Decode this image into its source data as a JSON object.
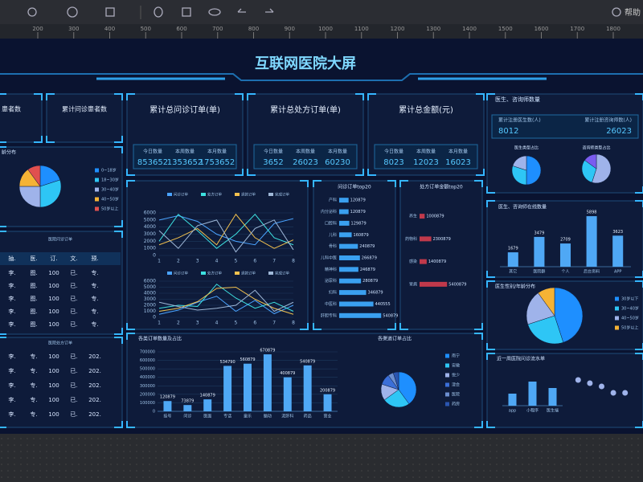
{
  "toolbar": {
    "help": "帮助",
    "ruler": [
      200,
      300,
      400,
      500,
      600,
      700,
      800,
      900,
      1000,
      1100,
      1200,
      1300,
      1400,
      1500,
      1600,
      1700,
      1800
    ]
  },
  "title": "互联网医院大屏",
  "patient_cards": [
    "患者数",
    "累计问诊患者数"
  ],
  "stat_cards": [
    {
      "title": "累计总问诊订单(单)",
      "items": [
        {
          "label": "今日数量",
          "value": 853652
        },
        {
          "label": "本周数量",
          "value": 1353652
        },
        {
          "label": "本月数量",
          "value": 1753652
        }
      ]
    },
    {
      "title": "累计总处方订单(单)",
      "items": [
        {
          "label": "今日数量",
          "value": 3652
        },
        {
          "label": "本周数量",
          "value": 26023
        },
        {
          "label": "本月数量",
          "value": 60230
        }
      ]
    },
    {
      "title": "累计总金额(元)",
      "items": [
        {
          "label": "今日数量",
          "value": 8023
        },
        {
          "label": "本周数量",
          "value": 12023
        },
        {
          "label": "本月数量",
          "value": 16023
        }
      ]
    }
  ],
  "doctor_card": {
    "title": "医生、咨询师数量",
    "items": [
      {
        "label": "累计注册医生数(人)",
        "value": 8012
      },
      {
        "label": "累计注册咨询师数(人)",
        "value": 26023
      }
    ]
  },
  "tables": [
    {
      "title": "医院问诊订单",
      "header": [
        "抽.",
        "医.",
        "订.",
        "文.",
        "预."
      ],
      "rows": [
        [
          "李.",
          "图.",
          "100",
          "已.",
          "专."
        ],
        [
          "李.",
          "图.",
          "100",
          "已.",
          "专."
        ],
        [
          "李.",
          "图.",
          "100",
          "已.",
          "专."
        ],
        [
          "李.",
          "图.",
          "100",
          "已.",
          "专."
        ],
        [
          "李.",
          "图.",
          "100",
          "已.",
          "专."
        ]
      ]
    },
    {
      "title": "医院处方订单",
      "rows": [
        [
          "李.",
          "专.",
          "100",
          "已.",
          "202."
        ],
        [
          "李.",
          "专.",
          "100",
          "已.",
          "202."
        ],
        [
          "李.",
          "专.",
          "100",
          "已.",
          "202."
        ],
        [
          "李.",
          "专.",
          "100",
          "已.",
          "202."
        ],
        [
          "李.",
          "专.",
          "100",
          "已.",
          "202."
        ]
      ]
    }
  ],
  "charts": {
    "age_pie": {
      "type": "pie",
      "title": "龄分布",
      "categories": [
        "0~18岁",
        "18~30岁",
        "30~40岁",
        "40~50岁",
        "50岁以上"
      ],
      "values": [
        20,
        30,
        25,
        15,
        10
      ],
      "colors": [
        "#1e8fff",
        "#2ec6f5",
        "#9fb3ea",
        "#f5b335",
        "#e0504f"
      ]
    },
    "orders_line": {
      "type": "line",
      "x": [
        1,
        2,
        3,
        4,
        5,
        6,
        7,
        8
      ],
      "ylim": [
        0,
        6000
      ],
      "yticks": [
        0,
        1000,
        2000,
        3000,
        4000,
        5000,
        6000
      ],
      "series": [
        {
          "name": "问诊订单",
          "color": "#4aa3ff",
          "values": [
            5000,
            5600,
            4800,
            3000,
            2000,
            1500,
            4500,
            5200
          ]
        },
        {
          "name": "处方订单",
          "color": "#3de0e0",
          "values": [
            2000,
            5800,
            3500,
            1000,
            3000,
            5800,
            2500,
            1500
          ]
        },
        {
          "name": "退款订单",
          "color": "#f2c14e",
          "values": [
            1500,
            2500,
            3800,
            1500,
            5800,
            2500,
            1000,
            2200
          ]
        },
        {
          "name": "完成订单",
          "color": "#9fb8d8",
          "values": [
            3500,
            1000,
            4200,
            5000,
            500,
            3800,
            5000,
            800
          ]
        }
      ]
    },
    "orders_line2": {
      "type": "line",
      "x": [
        1,
        2,
        3,
        4,
        5,
        6,
        7,
        8
      ],
      "ylim": [
        0,
        6000
      ],
      "yticks": [
        0,
        1000,
        2000,
        3000,
        4000,
        5000,
        6000
      ],
      "series": [
        {
          "name": "问诊订单",
          "color": "#4aa3ff",
          "values": [
            500,
            1200,
            2500,
            3500,
            1000,
            2800,
            600,
            2000
          ]
        },
        {
          "name": "处方订单",
          "color": "#3de0e0",
          "values": [
            1500,
            2000,
            1800,
            5500,
            3200,
            1500,
            2500,
            1000
          ]
        },
        {
          "name": "退款订单",
          "color": "#f2c14e",
          "values": [
            1000,
            1500,
            2600,
            4800,
            5000,
            3000,
            1500,
            500
          ]
        },
        {
          "name": "完成订单",
          "color": "#9fb8d8",
          "values": [
            2500,
            1800,
            1200,
            1500,
            2000,
            4500,
            1000,
            2500
          ]
        }
      ]
    },
    "dept_top20": {
      "type": "hbar",
      "title": "问诊订单top20",
      "color": "#3aa0f0",
      "xlim": [
        0,
        600000
      ],
      "categories": [
        "产科",
        "内分泌科",
        "口腔科",
        "儿科",
        "骨科",
        "儿科中医",
        "精神科",
        "泌尿科",
        "妇科",
        "中医科",
        "肝胆专科"
      ],
      "values": [
        120879,
        120879,
        129879,
        160879,
        240879,
        266879,
        246879,
        280879,
        346879,
        440555,
        540879
      ]
    },
    "rx_top20": {
      "type": "hbar",
      "title": "处方订单金额top20",
      "color": "#c0394b",
      "xlim": [
        0,
        6000000
      ],
      "categories": [
        "养生",
        "药物科",
        "感染",
        "胃病"
      ],
      "values": [
        1000879,
        2300879,
        1400879,
        5400879
      ]
    },
    "orders_bar": {
      "type": "bar",
      "title": "各类订单数量及占比",
      "color": "#4fa8f5",
      "ylim": [
        0,
        700000
      ],
      "yticks": [
        0,
        100000,
        200000,
        300000,
        400000,
        500000,
        600000,
        700000
      ],
      "categories": [
        "挂号",
        "问诊",
        "医面",
        "专话",
        "童乐",
        "脑动",
        "泥肝科",
        "药品",
        "营业"
      ],
      "values": [
        120879,
        73879,
        140879,
        534790,
        560879,
        670879,
        400879,
        540879,
        200879
      ]
    },
    "orders_donut": {
      "type": "pie",
      "title": "各渠道订单占比",
      "categories": [
        "南宁",
        "安徽",
        "悦少",
        "津会",
        "医院",
        "药房"
      ],
      "values": [
        40,
        25,
        15,
        10,
        5,
        5
      ],
      "colors": [
        "#1e8fff",
        "#2ec6f5",
        "#9fb3ea",
        "#3b6fd8",
        "#6c8fd0",
        "#2a55b0"
      ]
    },
    "doctor_pie": {
      "type": "pie",
      "title": "医生类型占比",
      "categories": [
        "全科",
        "专科",
        "中医"
      ],
      "values": [
        50,
        30,
        20
      ],
      "colors": [
        "#1e8fff",
        "#2ec6f5",
        "#9fb3ea"
      ]
    },
    "counselor_pie": {
      "type": "pie",
      "title": "咨询师类型占比",
      "categories": [
        "心理",
        "营养",
        "康复"
      ],
      "values": [
        55,
        30,
        15
      ],
      "colors": [
        "#9fb3ea",
        "#2ec6f5",
        "#7a5cf0"
      ]
    },
    "online_bar": {
      "type": "bar",
      "title": "医生、咨询师在线数量",
      "color": "#4fa8f5",
      "ylim": [
        0,
        6000
      ],
      "categories": [
        "其它",
        "医院群",
        "个人",
        "后台资料",
        "APP"
      ],
      "values": [
        1679,
        3479,
        2709,
        5898,
        3623
      ]
    },
    "gender_pie": {
      "type": "pie",
      "title": "医生性别/年龄分布",
      "categories": [
        "30岁以下",
        "30~40岁",
        "40~50岁",
        "50岁以上"
      ],
      "values": [
        45,
        25,
        20,
        10
      ],
      "colors": [
        "#1e8fff",
        "#2ec6f5",
        "#9fb3ea",
        "#f5b335"
      ]
    },
    "recent_bar": {
      "type": "bar",
      "title": "近一周医院问诊流水单",
      "color": "#4fa8f5",
      "ylim": [
        0,
        4000
      ],
      "categories": [
        "app",
        "小程序",
        "医生端"
      ],
      "values": [
        1500,
        3000,
        2200
      ]
    },
    "recent_points": {
      "type": "scatter",
      "color": "#9fb3ea",
      "x": [
        1,
        2,
        3,
        4,
        5
      ],
      "xlim": [
        0.5,
        5.5
      ],
      "ylim": [
        0,
        5
      ],
      "values": [
        4,
        3.5,
        3,
        2,
        2
      ]
    }
  }
}
